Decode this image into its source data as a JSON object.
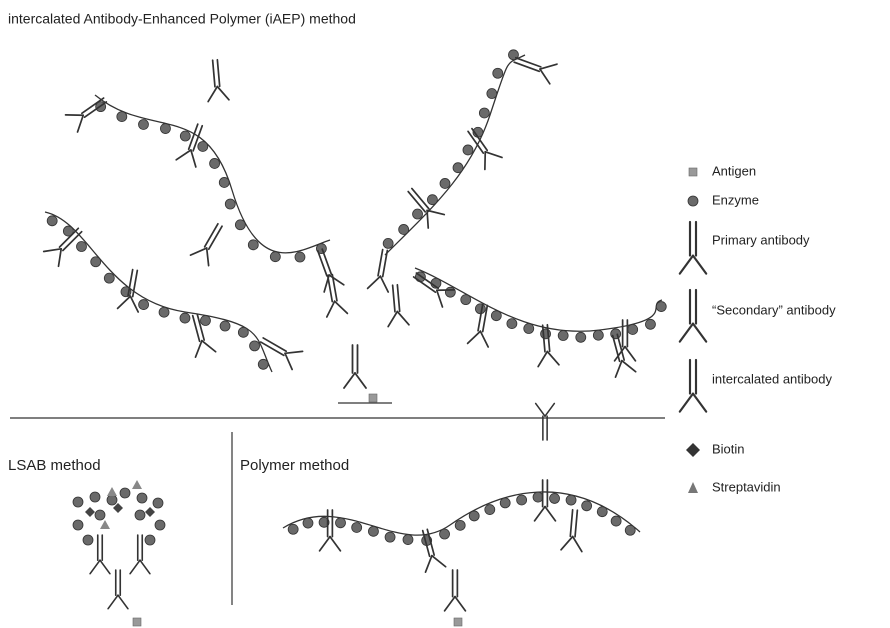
{
  "title": "intercalated Antibody-Enhanced Polymer (iAEP) method",
  "panels": [
    {
      "label": "LSAB method"
    },
    {
      "label": "Polymer method"
    }
  ],
  "legend": [
    {
      "label": "Antigen"
    },
    {
      "label": "Enzyme"
    },
    {
      "label": "Primary antibody"
    },
    {
      "label": "“Secondary” antibody"
    },
    {
      "label": "intercalated antibody"
    },
    {
      "label": "Biotin"
    },
    {
      "label": "Streptavidin"
    }
  ]
}
